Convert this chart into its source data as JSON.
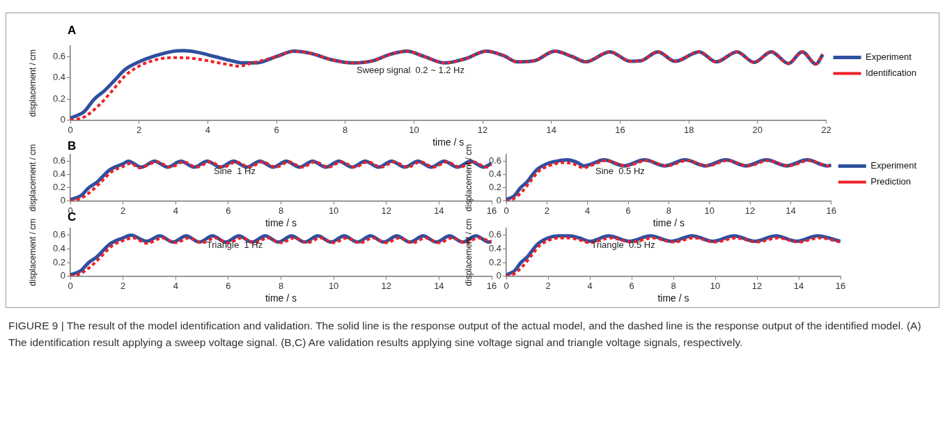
{
  "chart_data": [
    {
      "type": "line",
      "xlabel": "time / s",
      "ylabel": "displacement / cm",
      "xlim": [
        0,
        22
      ],
      "xticks": [
        0,
        2,
        4,
        6,
        8,
        10,
        12,
        14,
        16,
        18,
        20,
        22
      ],
      "ylim": [
        0,
        0.7
      ],
      "yticks": [
        0,
        0.2,
        0.4,
        0.6
      ],
      "grid": false,
      "legend": "right",
      "annotations": [
        "A",
        "Sweep signal  0.2 ~ 1.2 Hz",
        "FIGURE 9 | The result of the model identification and validation. The solid line is the response output of the actual model, and the dashed line is the response output of the identified model. (A) The identification result applying a sweep voltage signal. (B,C) Are validation results applying sine voltage signal and triangle voltage signals, respectively."
      ],
      "series": [
        {
          "name": "Experiment",
          "color": "#2f4f9f",
          "line_style": "solid",
          "x": [
            0,
            0.4,
            0.7,
            1,
            1.3,
            1.6,
            2,
            2.5,
            3,
            3.3,
            3.7,
            4.2,
            4.7,
            5,
            5.4,
            6,
            6.5,
            7,
            7.6,
            8.2,
            8.8,
            9.3,
            9.8,
            10.3,
            10.9,
            11.5,
            12.1,
            12.6,
            13,
            13.5,
            14.1,
            14.6,
            15,
            15.7,
            16.3,
            16.6,
            17.1,
            17.6,
            18.3,
            18.8,
            19.4,
            19.9,
            20.4,
            20.9,
            21.3,
            21.7,
            21.9
          ],
          "values": [
            0.02,
            0.08,
            0.2,
            0.28,
            0.38,
            0.48,
            0.55,
            0.61,
            0.65,
            0.655,
            0.64,
            0.6,
            0.56,
            0.54,
            0.54,
            0.6,
            0.65,
            0.63,
            0.57,
            0.54,
            0.56,
            0.62,
            0.65,
            0.6,
            0.54,
            0.58,
            0.65,
            0.61,
            0.55,
            0.56,
            0.65,
            0.6,
            0.55,
            0.645,
            0.555,
            0.56,
            0.645,
            0.555,
            0.645,
            0.55,
            0.645,
            0.545,
            0.645,
            0.535,
            0.645,
            0.53,
            0.62
          ]
        },
        {
          "name": "Identification",
          "color": "#ee2024",
          "line_style": "dashed",
          "x": [
            0,
            0.4,
            0.8,
            1.2,
            1.6,
            2,
            2.5,
            3,
            3.5,
            4,
            4.5,
            4.9,
            5.3,
            6,
            6.5,
            7,
            7.6,
            8.2,
            8.8,
            9.3,
            9.8,
            10.3,
            10.9,
            11.5,
            12.1,
            12.6,
            13,
            13.5,
            14.1,
            14.6,
            15,
            15.7,
            16.3,
            16.6,
            17.1,
            17.6,
            18.3,
            18.8,
            19.4,
            19.9,
            20.4,
            20.9,
            21.3,
            21.7,
            21.9
          ],
          "values": [
            0,
            0.03,
            0.13,
            0.27,
            0.42,
            0.51,
            0.57,
            0.59,
            0.585,
            0.56,
            0.53,
            0.51,
            0.54,
            0.6,
            0.65,
            0.63,
            0.57,
            0.54,
            0.56,
            0.62,
            0.65,
            0.6,
            0.54,
            0.58,
            0.65,
            0.61,
            0.55,
            0.56,
            0.65,
            0.6,
            0.55,
            0.645,
            0.555,
            0.56,
            0.645,
            0.555,
            0.645,
            0.55,
            0.645,
            0.545,
            0.645,
            0.535,
            0.645,
            0.53,
            0.62
          ]
        }
      ]
    },
    {
      "type": "line",
      "xlabel": "time / s",
      "ylabel": "displacement / cm",
      "xlim": [
        0,
        16
      ],
      "xticks": [
        0,
        2,
        4,
        6,
        8,
        10,
        12,
        14,
        16
      ],
      "ylim": [
        0,
        0.7
      ],
      "yticks": [
        0,
        0.2,
        0.4,
        0.6
      ],
      "grid": false,
      "annotations": [
        "B",
        "Sine  1 Hz"
      ],
      "series": [
        {
          "color": "#2f4f9f",
          "line_style": "solid",
          "x": [
            0,
            0.4,
            0.7,
            1,
            1.5,
            2,
            2.2,
            2.7,
            3.2,
            3.7,
            4.2,
            4.7,
            5.2,
            5.7,
            6.2,
            6.7,
            7.2,
            7.7,
            8.2,
            8.7,
            9.2,
            9.7,
            10.2,
            10.7,
            11.2,
            11.7,
            12.2,
            12.7,
            13.2,
            13.7,
            14.2,
            14.7,
            15.2,
            15.7,
            16
          ],
          "values": [
            0.02,
            0.08,
            0.2,
            0.28,
            0.47,
            0.56,
            0.6,
            0.51,
            0.6,
            0.51,
            0.6,
            0.51,
            0.6,
            0.51,
            0.6,
            0.51,
            0.6,
            0.51,
            0.6,
            0.51,
            0.6,
            0.51,
            0.6,
            0.51,
            0.6,
            0.51,
            0.6,
            0.51,
            0.6,
            0.51,
            0.6,
            0.51,
            0.6,
            0.51,
            0.57
          ]
        },
        {
          "color": "#ee2024",
          "line_style": "dashed",
          "x": [
            0,
            0.4,
            0.8,
            1.2,
            1.6,
            2,
            2.3,
            2.6,
            3.3,
            3.8,
            4.3,
            4.8,
            5.3,
            5.8,
            6.3,
            6.8,
            7.3,
            7.8,
            8.3,
            8.8,
            9.3,
            9.8,
            10.3,
            10.8,
            11.3,
            11.8,
            12.3,
            12.8,
            13.3,
            13.8,
            14.3,
            14.8,
            15.3,
            15.8,
            16
          ],
          "values": [
            0,
            0.04,
            0.15,
            0.3,
            0.45,
            0.52,
            0.57,
            0.5,
            0.59,
            0.51,
            0.59,
            0.51,
            0.59,
            0.51,
            0.59,
            0.51,
            0.59,
            0.51,
            0.59,
            0.51,
            0.59,
            0.51,
            0.59,
            0.51,
            0.59,
            0.51,
            0.59,
            0.51,
            0.59,
            0.51,
            0.59,
            0.51,
            0.59,
            0.51,
            0.55
          ]
        }
      ]
    },
    {
      "type": "line",
      "xlabel": "time / s",
      "ylabel": "displacement / cm",
      "xlim": [
        0,
        16
      ],
      "xticks": [
        0,
        2,
        4,
        6,
        8,
        10,
        12,
        14,
        16
      ],
      "ylim": [
        0,
        0.7
      ],
      "yticks": [
        0,
        0.2,
        0.4,
        0.6
      ],
      "grid": false,
      "legend": "right",
      "annotations": [
        "Sine  0.5 Hz"
      ],
      "series": [
        {
          "name": "Experiment",
          "color": "#2f4f9f",
          "line_style": "solid",
          "x": [
            0,
            0.4,
            0.7,
            1,
            1.5,
            2,
            2.5,
            3,
            3.5,
            3.8,
            4.2,
            4.8,
            5.8,
            6.8,
            7.8,
            8.8,
            9.8,
            10.8,
            11.8,
            12.8,
            13.8,
            14.8,
            15.8,
            16
          ],
          "values": [
            0.02,
            0.08,
            0.2,
            0.28,
            0.47,
            0.56,
            0.6,
            0.62,
            0.58,
            0.53,
            0.56,
            0.62,
            0.53,
            0.62,
            0.53,
            0.62,
            0.53,
            0.62,
            0.53,
            0.62,
            0.53,
            0.62,
            0.53,
            0.54
          ]
        },
        {
          "name": "Prediction",
          "color": "#ee2024",
          "line_style": "dashed",
          "x": [
            0,
            0.4,
            0.8,
            1.2,
            1.6,
            2,
            2.4,
            2.8,
            3.3,
            3.8,
            4.3,
            4.9,
            5.9,
            6.9,
            7.9,
            8.9,
            9.9,
            10.9,
            11.9,
            12.9,
            13.9,
            14.9,
            15.9,
            16
          ],
          "values": [
            0,
            0.04,
            0.15,
            0.3,
            0.45,
            0.52,
            0.56,
            0.58,
            0.56,
            0.5,
            0.55,
            0.61,
            0.53,
            0.61,
            0.53,
            0.61,
            0.53,
            0.61,
            0.53,
            0.61,
            0.53,
            0.61,
            0.53,
            0.53
          ]
        }
      ]
    },
    {
      "type": "line",
      "xlabel": "time / s",
      "ylabel": "displacement / cm",
      "xlim": [
        0,
        16
      ],
      "xticks": [
        0,
        2,
        4,
        6,
        8,
        10,
        12,
        14,
        16
      ],
      "ylim": [
        0,
        0.7
      ],
      "yticks": [
        0,
        0.2,
        0.4,
        0.6
      ],
      "grid": false,
      "annotations": [
        "C",
        "Triangle  1 Hz"
      ],
      "series": [
        {
          "color": "#2f4f9f",
          "line_style": "solid",
          "x": [
            0,
            0.4,
            0.7,
            1,
            1.5,
            2,
            2.3,
            2.9,
            3.4,
            3.9,
            4.4,
            4.9,
            5.4,
            5.9,
            6.4,
            6.9,
            7.4,
            7.9,
            8.4,
            8.9,
            9.4,
            9.9,
            10.4,
            10.9,
            11.4,
            11.9,
            12.4,
            12.9,
            13.4,
            13.9,
            14.4,
            14.9,
            15.4,
            15.9,
            16
          ],
          "values": [
            0.02,
            0.08,
            0.2,
            0.28,
            0.47,
            0.56,
            0.6,
            0.51,
            0.59,
            0.5,
            0.59,
            0.5,
            0.59,
            0.5,
            0.59,
            0.5,
            0.59,
            0.5,
            0.59,
            0.5,
            0.59,
            0.5,
            0.59,
            0.5,
            0.59,
            0.5,
            0.59,
            0.5,
            0.59,
            0.5,
            0.59,
            0.5,
            0.59,
            0.5,
            0.51
          ]
        },
        {
          "color": "#ee2024",
          "line_style": "dashed",
          "x": [
            0,
            0.4,
            0.8,
            1.2,
            1.6,
            2,
            2.4,
            2.9,
            3.5,
            4,
            4.5,
            5,
            5.5,
            6,
            6.5,
            7,
            7.5,
            8,
            8.5,
            9,
            9.5,
            10,
            10.5,
            11,
            11.5,
            12,
            12.5,
            13,
            13.5,
            14,
            14.5,
            15,
            15.5,
            16
          ],
          "values": [
            0,
            0.04,
            0.15,
            0.3,
            0.45,
            0.52,
            0.56,
            0.48,
            0.56,
            0.49,
            0.56,
            0.49,
            0.56,
            0.49,
            0.56,
            0.49,
            0.56,
            0.49,
            0.56,
            0.49,
            0.56,
            0.49,
            0.56,
            0.49,
            0.56,
            0.49,
            0.56,
            0.49,
            0.56,
            0.49,
            0.56,
            0.49,
            0.56,
            0.5
          ]
        }
      ]
    },
    {
      "type": "line",
      "xlabel": "time / s",
      "ylabel": "displacement / cm",
      "xlim": [
        0,
        16
      ],
      "xticks": [
        0,
        2,
        4,
        6,
        8,
        10,
        12,
        14,
        16
      ],
      "ylim": [
        0,
        0.7
      ],
      "yticks": [
        0,
        0.2,
        0.4,
        0.6
      ],
      "grid": false,
      "annotations": [
        "Triangle  0.5 Hz"
      ],
      "series": [
        {
          "color": "#2f4f9f",
          "line_style": "solid",
          "x": [
            0,
            0.4,
            0.7,
            1,
            1.5,
            2,
            2.5,
            3,
            3.5,
            4,
            4.9,
            5.9,
            6.9,
            7.9,
            8.9,
            9.9,
            10.9,
            11.9,
            12.9,
            13.9,
            14.9,
            16
          ],
          "values": [
            0.02,
            0.08,
            0.2,
            0.28,
            0.47,
            0.56,
            0.59,
            0.59,
            0.56,
            0.51,
            0.59,
            0.51,
            0.59,
            0.51,
            0.59,
            0.51,
            0.59,
            0.51,
            0.59,
            0.51,
            0.59,
            0.51
          ]
        },
        {
          "color": "#ee2024",
          "line_style": "dashed",
          "x": [
            0,
            0.4,
            0.8,
            1.2,
            1.6,
            2,
            2.5,
            3,
            3.5,
            4,
            5,
            6,
            7,
            8,
            9,
            10,
            11,
            12,
            13,
            14,
            15,
            16
          ],
          "values": [
            0,
            0.04,
            0.15,
            0.3,
            0.45,
            0.52,
            0.56,
            0.56,
            0.53,
            0.49,
            0.56,
            0.5,
            0.56,
            0.5,
            0.56,
            0.5,
            0.56,
            0.5,
            0.56,
            0.5,
            0.56,
            0.5
          ]
        }
      ]
    }
  ]
}
